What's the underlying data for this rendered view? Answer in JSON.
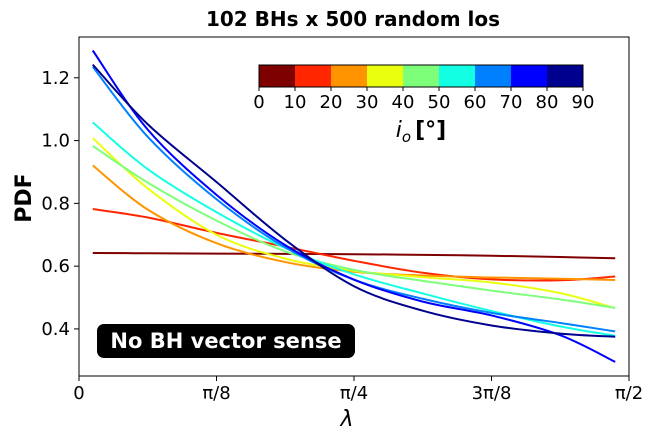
{
  "chart_data": {
    "type": "line",
    "title": "102 BHs x 500 random los",
    "xlabel": "λ",
    "ylabel": "PDF",
    "xlim": [
      0,
      1.5707963
    ],
    "ylim": [
      0.25,
      1.33
    ],
    "x_ticks": [
      0,
      0.3927,
      0.7854,
      1.1781,
      1.5708
    ],
    "x_tick_labels": [
      "0",
      "π/8",
      "π/4",
      "3π/8",
      "π/2"
    ],
    "y_ticks": [
      0.4,
      0.6,
      0.8,
      1.0,
      1.2
    ],
    "y_tick_labels": [
      "0.4",
      "0.6",
      "0.8",
      "1.0",
      "1.2"
    ],
    "grid": false,
    "annotation": "No BH vector sense",
    "colorbar": {
      "label_symbol": "i",
      "label_sub": "o",
      "label_unit": "[°]",
      "placement": "top-right",
      "ticks": [
        "0",
        "10",
        "20",
        "30",
        "40",
        "50",
        "60",
        "70",
        "80",
        "90"
      ],
      "colors": [
        "#7f0000",
        "#ff2600",
        "#ff9400",
        "#e9ff0d",
        "#7dff7a",
        "#13ffe3",
        "#0080ff",
        "#0000ff",
        "#00008f"
      ]
    },
    "x": [
      0.0393,
      0.1963,
      0.3927,
      0.589,
      0.7854,
      0.9817,
      1.1781,
      1.3744,
      1.5315
    ],
    "series": [
      {
        "color": "#7f0000",
        "values": [
          0.642,
          0.641,
          0.64,
          0.639,
          0.638,
          0.636,
          0.633,
          0.629,
          0.625
        ]
      },
      {
        "color": "#ff2600",
        "values": [
          0.782,
          0.755,
          0.706,
          0.662,
          0.617,
          0.579,
          0.558,
          0.555,
          0.567
        ]
      },
      {
        "color": "#ff9400",
        "values": [
          0.921,
          0.78,
          0.673,
          0.613,
          0.582,
          0.57,
          0.564,
          0.56,
          0.556
        ]
      },
      {
        "color": "#e9ff0d",
        "values": [
          1.008,
          0.848,
          0.7,
          0.624,
          0.585,
          0.565,
          0.548,
          0.514,
          0.466
        ]
      },
      {
        "color": "#7dff7a",
        "values": [
          0.983,
          0.866,
          0.745,
          0.647,
          0.588,
          0.553,
          0.522,
          0.494,
          0.467
        ]
      },
      {
        "color": "#13ffe3",
        "values": [
          1.058,
          0.909,
          0.772,
          0.658,
          0.574,
          0.513,
          0.457,
          0.408,
          0.378
        ]
      },
      {
        "color": "#0080ff",
        "values": [
          1.235,
          1.012,
          0.813,
          0.66,
          0.557,
          0.496,
          0.451,
          0.419,
          0.392
        ]
      },
      {
        "color": "#0000ff",
        "values": [
          1.287,
          1.035,
          0.827,
          0.667,
          0.557,
          0.487,
          0.443,
          0.38,
          0.295
        ]
      },
      {
        "color": "#00008f",
        "values": [
          1.242,
          1.052,
          0.868,
          0.684,
          0.536,
          0.458,
          0.411,
          0.385,
          0.375
        ]
      }
    ]
  }
}
